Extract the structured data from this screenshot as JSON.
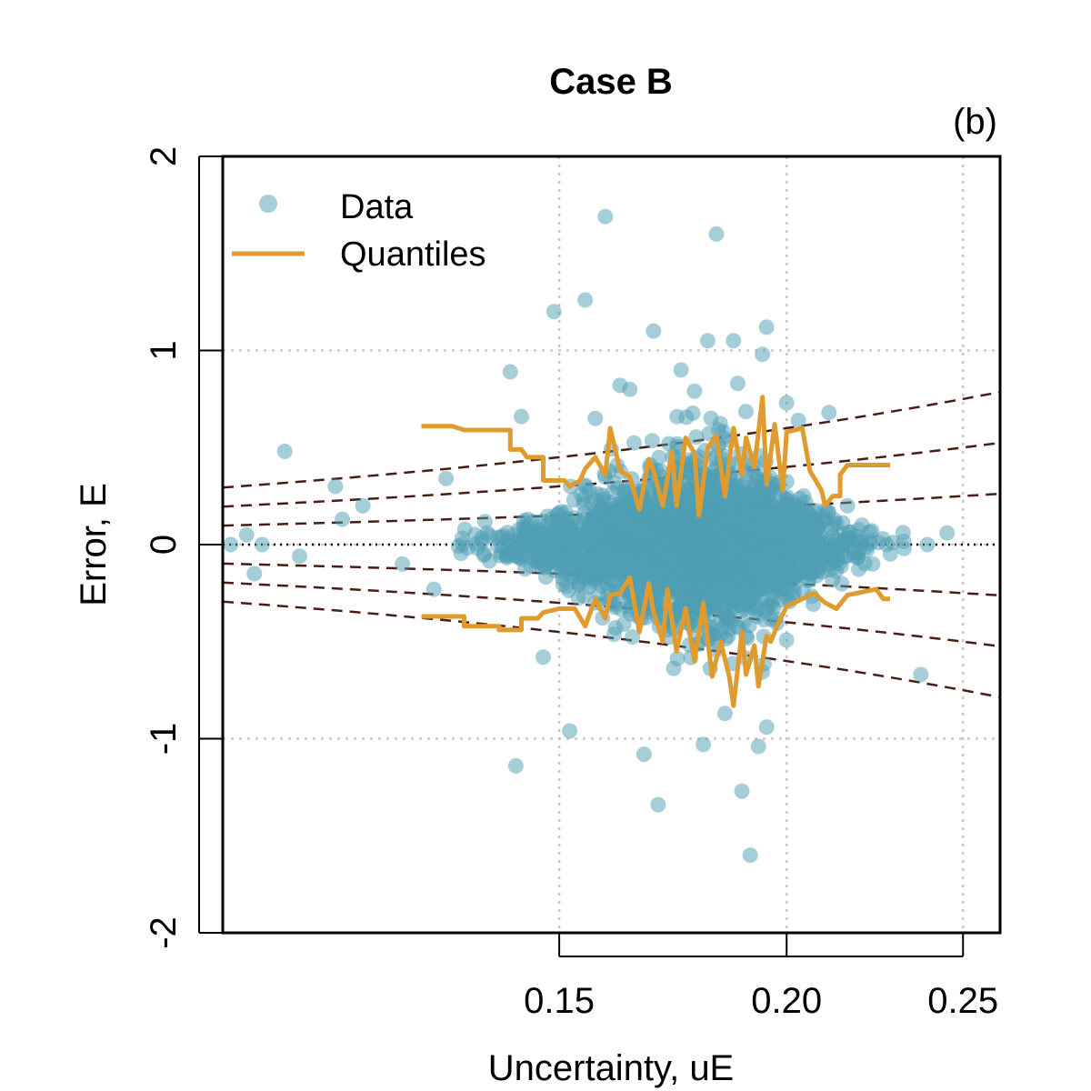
{
  "chart_data": {
    "type": "scatter",
    "title": "Case B",
    "panel_label": "(b)",
    "xlabel": "Uncertainty, uE",
    "ylabel": "Error, E",
    "xlim": [
      0.098,
      0.262
    ],
    "ylim": [
      -2,
      2
    ],
    "x_scale": "log",
    "x_ticks": [
      0.15,
      0.2,
      0.25
    ],
    "x_tick_labels": [
      "0.15",
      "0.20",
      "0.25"
    ],
    "y_ticks": [
      -2,
      -1,
      0,
      1,
      2
    ],
    "y_tick_labels": [
      "-2",
      "-1",
      "0",
      "1",
      "2"
    ],
    "grid": true,
    "legend": {
      "position": "top-left",
      "entries": [
        {
          "label": "Data",
          "kind": "point"
        },
        {
          "label": "Quantiles",
          "kind": "line"
        }
      ]
    },
    "colors": {
      "data": "#4e9db3",
      "quantiles": "#e09b2f",
      "reference": "#4a1d14",
      "grid": "#c8c8c8"
    },
    "reference_lines": {
      "style": "dashed",
      "description": "E = +/- k * uE for k = 1, 2, 3",
      "k": [
        1,
        2,
        3
      ]
    },
    "zero_line": {
      "y": 0,
      "style": "dotted"
    },
    "outliers": [
      {
        "x": 0.099,
        "y": 0.0
      },
      {
        "x": 0.101,
        "y": 0.05
      },
      {
        "x": 0.102,
        "y": -0.15
      },
      {
        "x": 0.103,
        "y": 0.0
      },
      {
        "x": 0.106,
        "y": 0.48
      },
      {
        "x": 0.108,
        "y": -0.06
      },
      {
        "x": 0.113,
        "y": 0.3
      },
      {
        "x": 0.114,
        "y": 0.13
      },
      {
        "x": 0.117,
        "y": 0.2
      },
      {
        "x": 0.123,
        "y": -0.1
      },
      {
        "x": 0.128,
        "y": -0.23
      },
      {
        "x": 0.13,
        "y": 0.34
      },
      {
        "x": 0.141,
        "y": 0.89
      },
      {
        "x": 0.143,
        "y": 0.66
      },
      {
        "x": 0.142,
        "y": -1.14
      },
      {
        "x": 0.147,
        "y": -0.58
      },
      {
        "x": 0.149,
        "y": 1.2
      },
      {
        "x": 0.152,
        "y": -0.96
      },
      {
        "x": 0.155,
        "y": 1.26
      },
      {
        "x": 0.157,
        "y": 0.65
      },
      {
        "x": 0.159,
        "y": 1.69
      },
      {
        "x": 0.162,
        "y": 0.82
      },
      {
        "x": 0.164,
        "y": 0.8
      },
      {
        "x": 0.167,
        "y": -1.08
      },
      {
        "x": 0.169,
        "y": 1.1
      },
      {
        "x": 0.17,
        "y": -1.34
      },
      {
        "x": 0.175,
        "y": 0.9
      },
      {
        "x": 0.178,
        "y": 0.79
      },
      {
        "x": 0.18,
        "y": -1.03
      },
      {
        "x": 0.181,
        "y": 1.05
      },
      {
        "x": 0.183,
        "y": 1.6
      },
      {
        "x": 0.185,
        "y": -0.87
      },
      {
        "x": 0.187,
        "y": 1.05
      },
      {
        "x": 0.188,
        "y": 0.83
      },
      {
        "x": 0.189,
        "y": -1.27
      },
      {
        "x": 0.191,
        "y": -1.6
      },
      {
        "x": 0.194,
        "y": 0.98
      },
      {
        "x": 0.195,
        "y": 1.12
      },
      {
        "x": 0.195,
        "y": -0.94
      },
      {
        "x": 0.193,
        "y": -1.04
      },
      {
        "x": 0.2,
        "y": 0.73
      },
      {
        "x": 0.203,
        "y": 0.64
      },
      {
        "x": 0.211,
        "y": 0.68
      },
      {
        "x": 0.216,
        "y": 0.2
      },
      {
        "x": 0.22,
        "y": 0.1
      },
      {
        "x": 0.223,
        "y": -0.1
      },
      {
        "x": 0.227,
        "y": 0.0
      },
      {
        "x": 0.232,
        "y": -0.02
      },
      {
        "x": 0.239,
        "y": 0.0
      },
      {
        "x": 0.245,
        "y": 0.06
      },
      {
        "x": 0.237,
        "y": -0.67
      }
    ],
    "quantile_upper": [
      {
        "x": 0.126,
        "y": 0.61
      },
      {
        "x": 0.131,
        "y": 0.61
      },
      {
        "x": 0.133,
        "y": 0.59
      },
      {
        "x": 0.141,
        "y": 0.59
      },
      {
        "x": 0.141,
        "y": 0.49
      },
      {
        "x": 0.143,
        "y": 0.49
      },
      {
        "x": 0.144,
        "y": 0.45
      },
      {
        "x": 0.147,
        "y": 0.45
      },
      {
        "x": 0.147,
        "y": 0.33
      },
      {
        "x": 0.151,
        "y": 0.33
      },
      {
        "x": 0.152,
        "y": 0.3
      },
      {
        "x": 0.154,
        "y": 0.33
      },
      {
        "x": 0.155,
        "y": 0.39
      },
      {
        "x": 0.157,
        "y": 0.45
      },
      {
        "x": 0.159,
        "y": 0.36
      },
      {
        "x": 0.16,
        "y": 0.6
      },
      {
        "x": 0.162,
        "y": 0.38
      },
      {
        "x": 0.164,
        "y": 0.35
      },
      {
        "x": 0.166,
        "y": 0.18
      },
      {
        "x": 0.168,
        "y": 0.44
      },
      {
        "x": 0.169,
        "y": 0.38
      },
      {
        "x": 0.171,
        "y": 0.2
      },
      {
        "x": 0.173,
        "y": 0.48
      },
      {
        "x": 0.174,
        "y": 0.2
      },
      {
        "x": 0.176,
        "y": 0.55
      },
      {
        "x": 0.178,
        "y": 0.47
      },
      {
        "x": 0.179,
        "y": 0.15
      },
      {
        "x": 0.181,
        "y": 0.5
      },
      {
        "x": 0.183,
        "y": 0.56
      },
      {
        "x": 0.185,
        "y": 0.25
      },
      {
        "x": 0.187,
        "y": 0.6
      },
      {
        "x": 0.189,
        "y": 0.36
      },
      {
        "x": 0.19,
        "y": 0.55
      },
      {
        "x": 0.192,
        "y": 0.4
      },
      {
        "x": 0.194,
        "y": 0.76
      },
      {
        "x": 0.195,
        "y": 0.31
      },
      {
        "x": 0.197,
        "y": 0.62
      },
      {
        "x": 0.199,
        "y": 0.28
      },
      {
        "x": 0.2,
        "y": 0.58
      },
      {
        "x": 0.204,
        "y": 0.6
      },
      {
        "x": 0.206,
        "y": 0.38
      },
      {
        "x": 0.209,
        "y": 0.28
      },
      {
        "x": 0.21,
        "y": 0.2
      },
      {
        "x": 0.212,
        "y": 0.25
      },
      {
        "x": 0.214,
        "y": 0.25
      },
      {
        "x": 0.214,
        "y": 0.36
      },
      {
        "x": 0.216,
        "y": 0.41
      },
      {
        "x": 0.228,
        "y": 0.41
      }
    ],
    "quantile_lower": [
      {
        "x": 0.126,
        "y": -0.37
      },
      {
        "x": 0.133,
        "y": -0.37
      },
      {
        "x": 0.133,
        "y": -0.42
      },
      {
        "x": 0.139,
        "y": -0.42
      },
      {
        "x": 0.139,
        "y": -0.44
      },
      {
        "x": 0.143,
        "y": -0.44
      },
      {
        "x": 0.143,
        "y": -0.38
      },
      {
        "x": 0.146,
        "y": -0.38
      },
      {
        "x": 0.147,
        "y": -0.35
      },
      {
        "x": 0.15,
        "y": -0.33
      },
      {
        "x": 0.153,
        "y": -0.33
      },
      {
        "x": 0.155,
        "y": -0.42
      },
      {
        "x": 0.157,
        "y": -0.28
      },
      {
        "x": 0.159,
        "y": -0.38
      },
      {
        "x": 0.16,
        "y": -0.26
      },
      {
        "x": 0.162,
        "y": -0.25
      },
      {
        "x": 0.164,
        "y": -0.17
      },
      {
        "x": 0.166,
        "y": -0.45
      },
      {
        "x": 0.168,
        "y": -0.2
      },
      {
        "x": 0.169,
        "y": -0.35
      },
      {
        "x": 0.171,
        "y": -0.5
      },
      {
        "x": 0.172,
        "y": -0.23
      },
      {
        "x": 0.174,
        "y": -0.55
      },
      {
        "x": 0.176,
        "y": -0.33
      },
      {
        "x": 0.178,
        "y": -0.6
      },
      {
        "x": 0.18,
        "y": -0.3
      },
      {
        "x": 0.182,
        "y": -0.68
      },
      {
        "x": 0.184,
        "y": -0.5
      },
      {
        "x": 0.186,
        "y": -0.68
      },
      {
        "x": 0.187,
        "y": -0.83
      },
      {
        "x": 0.189,
        "y": -0.45
      },
      {
        "x": 0.19,
        "y": -0.67
      },
      {
        "x": 0.192,
        "y": -0.52
      },
      {
        "x": 0.193,
        "y": -0.73
      },
      {
        "x": 0.195,
        "y": -0.47
      },
      {
        "x": 0.196,
        "y": -0.5
      },
      {
        "x": 0.198,
        "y": -0.4
      },
      {
        "x": 0.2,
        "y": -0.32
      },
      {
        "x": 0.204,
        "y": -0.28
      },
      {
        "x": 0.207,
        "y": -0.25
      },
      {
        "x": 0.21,
        "y": -0.3
      },
      {
        "x": 0.213,
        "y": -0.33
      },
      {
        "x": 0.216,
        "y": -0.26
      },
      {
        "x": 0.224,
        "y": -0.23
      },
      {
        "x": 0.226,
        "y": -0.28
      },
      {
        "x": 0.228,
        "y": -0.28
      }
    ]
  }
}
